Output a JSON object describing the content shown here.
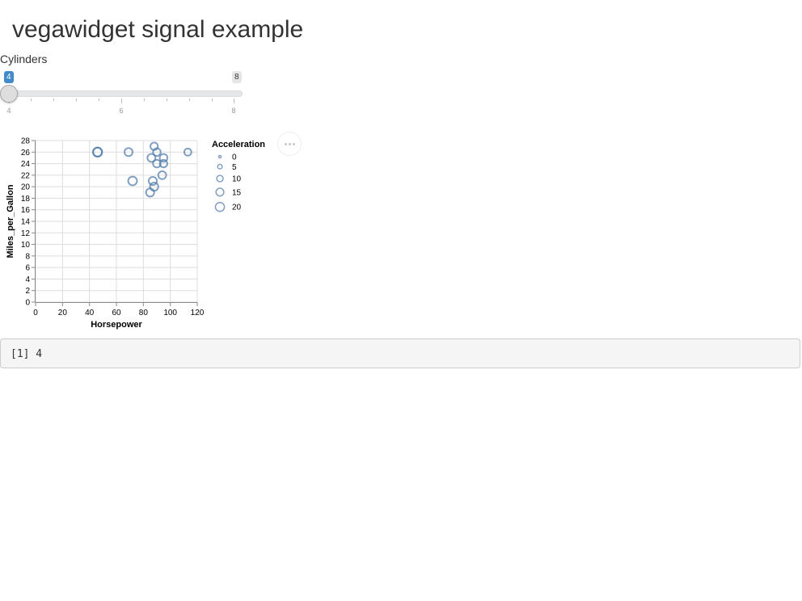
{
  "page": {
    "title": "vegawidget signal example"
  },
  "slider": {
    "label": "Cylinders",
    "value": 4,
    "min": 4,
    "max": 8,
    "value_label": "4",
    "max_label": "8",
    "ticks": [
      "4",
      "6",
      "8"
    ]
  },
  "more_button": {
    "icon": "ellipsis-icon"
  },
  "output": {
    "text": "[1] 4"
  },
  "chart_data": {
    "type": "scatter",
    "xlabel": "Horsepower",
    "ylabel": "Miles_per_Gallon",
    "xlim": [
      0,
      120
    ],
    "ylim": [
      0,
      28
    ],
    "xticks": [
      0,
      20,
      40,
      60,
      80,
      100,
      120
    ],
    "yticks": [
      0,
      2,
      4,
      6,
      8,
      10,
      12,
      14,
      16,
      18,
      20,
      22,
      24,
      26,
      28
    ],
    "grid": true,
    "stroke_color": "#4c78a8",
    "size_legend": {
      "title": "Acceleration",
      "position": "right",
      "entries": [
        {
          "label": "0",
          "value": 0
        },
        {
          "label": "5",
          "value": 5
        },
        {
          "label": "10",
          "value": 10
        },
        {
          "label": "15",
          "value": 15
        },
        {
          "label": "20",
          "value": 20
        }
      ]
    },
    "points": [
      {
        "x": 46,
        "y": 26,
        "size": 20.5
      },
      {
        "x": 46,
        "y": 26,
        "size": 19.5
      },
      {
        "x": 69,
        "y": 26,
        "size": 16
      },
      {
        "x": 88,
        "y": 27,
        "size": 14
      },
      {
        "x": 90,
        "y": 26,
        "size": 14.5
      },
      {
        "x": 113,
        "y": 26,
        "size": 12.5
      },
      {
        "x": 86,
        "y": 25,
        "size": 16
      },
      {
        "x": 95,
        "y": 25,
        "size": 15
      },
      {
        "x": 90,
        "y": 24,
        "size": 14.5
      },
      {
        "x": 95,
        "y": 24,
        "size": 14
      },
      {
        "x": 94,
        "y": 22,
        "size": 15.5
      },
      {
        "x": 72,
        "y": 21,
        "size": 19
      },
      {
        "x": 87,
        "y": 21,
        "size": 16.5
      },
      {
        "x": 88,
        "y": 20,
        "size": 17
      },
      {
        "x": 85,
        "y": 19,
        "size": 16.5
      }
    ]
  }
}
